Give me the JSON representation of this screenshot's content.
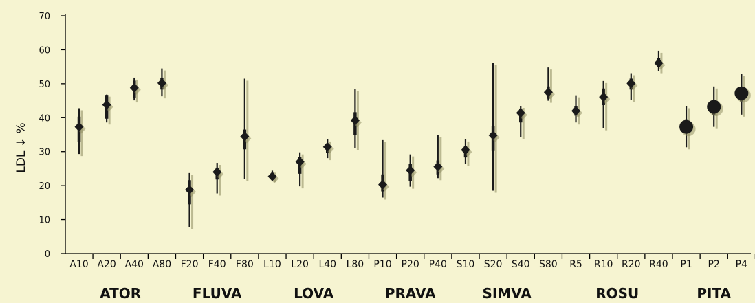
{
  "chart_data": {
    "type": "scatter",
    "ylabel": "LDL ↓ %",
    "ylim": [
      0,
      70
    ],
    "yticks": [
      0,
      10,
      20,
      30,
      40,
      50,
      60,
      70
    ],
    "colors": {
      "background": "#f6f4d1",
      "marker": "#1a1a1a",
      "shadow": "#8c8a5e"
    },
    "categories": [
      "A10",
      "A20",
      "A40",
      "A80",
      "F20",
      "F40",
      "F80",
      "L10",
      "L20",
      "L40",
      "L80",
      "P10",
      "P20",
      "P40",
      "S10",
      "S20",
      "S40",
      "S80",
      "R5",
      "R10",
      "R20",
      "R40",
      "P1",
      "P2",
      "P4"
    ],
    "marker_shapes": [
      "diamond",
      "diamond",
      "diamond",
      "diamond",
      "diamond",
      "diamond",
      "diamond",
      "diamond",
      "diamond",
      "diamond",
      "diamond",
      "diamond",
      "diamond",
      "diamond",
      "diamond",
      "diamond",
      "diamond",
      "diamond",
      "diamond",
      "diamond",
      "diamond",
      "diamond",
      "circle",
      "circle",
      "circle"
    ],
    "values": [
      37.3,
      43.8,
      48.8,
      50.2,
      18.8,
      24.0,
      34.5,
      22.7,
      27.0,
      31.4,
      39.2,
      20.3,
      24.5,
      25.6,
      30.5,
      34.8,
      41.4,
      47.5,
      42.0,
      46.1,
      50.1,
      56.1,
      37.3,
      43.2,
      47.2
    ],
    "whisker_low": [
      29.3,
      38.6,
      45.1,
      46.3,
      7.9,
      17.7,
      22.0,
      21.6,
      19.8,
      28.1,
      31.0,
      16.5,
      19.7,
      22.2,
      26.5,
      18.5,
      34.3,
      45.0,
      38.6,
      36.9,
      45.3,
      53.7,
      31.3,
      37.3,
      40.9
    ],
    "whisker_high": [
      42.8,
      46.8,
      51.8,
      54.5,
      23.7,
      26.7,
      51.5,
      24.4,
      29.8,
      33.6,
      48.5,
      33.4,
      29.2,
      34.9,
      33.6,
      56.1,
      43.5,
      54.8,
      46.6,
      50.8,
      53.1,
      59.7,
      43.4,
      49.2,
      52.9
    ],
    "box_low": [
      32.8,
      39.7,
      45.9,
      48.3,
      14.5,
      21.8,
      30.7,
      21.9,
      23.5,
      29.6,
      34.8,
      18.3,
      21.4,
      23.3,
      28.3,
      30.2,
      38.6,
      45.6,
      40.6,
      43.7,
      48.3,
      54.9,
      35.4,
      40.9,
      44.8
    ],
    "box_high": [
      40.3,
      46.7,
      50.9,
      51.8,
      21.6,
      25.3,
      36.5,
      23.5,
      28.5,
      32.4,
      41.6,
      23.3,
      26.5,
      27.4,
      31.7,
      37.6,
      42.7,
      49.2,
      43.5,
      48.6,
      51.5,
      57.5,
      39.5,
      45.0,
      48.6
    ],
    "groups": [
      {
        "label": "ATOR",
        "start": 0,
        "end": 3
      },
      {
        "label": "FLUVA",
        "start": 4,
        "end": 6
      },
      {
        "label": "LOVA",
        "start": 7,
        "end": 10
      },
      {
        "label": "PRAVA",
        "start": 11,
        "end": 13
      },
      {
        "label": "SIMVA",
        "start": 14,
        "end": 17
      },
      {
        "label": "ROSU",
        "start": 18,
        "end": 21
      },
      {
        "label": "PITA",
        "start": 22,
        "end": 24
      }
    ]
  }
}
